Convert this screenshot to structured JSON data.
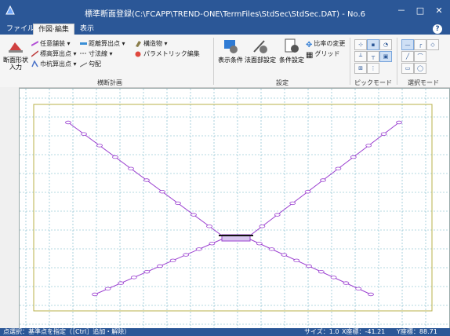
{
  "window": {
    "title": "標準断面登録(C:\\FCAPP\\TREND-ONE\\TermFiles\\StdSec\\StdSec.DAT) - No.6",
    "minimize": "－",
    "maximize": "□",
    "close": "✕"
  },
  "menu": {
    "tabs": [
      "ファイル",
      "作図·編集",
      "表示"
    ],
    "help": "?"
  },
  "ribbon": {
    "cross_section_group": {
      "label": "横断計画",
      "shape_input_button": "断面形状\n入力",
      "pavement": "任意舗装",
      "slope_calc": "標高算出点",
      "width_calc": "巾杭算出点",
      "distance_calc": "距離算出点",
      "dimension": "寸法線",
      "grade": "勾配",
      "structure": "構造物",
      "parametric": "パラメトリック編集"
    },
    "settings_group": {
      "label": "設定",
      "display_conditions": "表示条件",
      "slope_part": "法面部設定",
      "condition_settings": "条件設定",
      "ratio_change": "比率の変更",
      "grid": "グリッド"
    },
    "pick_group": {
      "label": "ピックモード"
    },
    "select_group": {
      "label": "選択モード"
    }
  },
  "status": {
    "left": "点選択：基準点を指定（［Ctrl］追加・解除）",
    "size": "サイズ：1.0",
    "x": "X座標：-41.21",
    "y": "Y座標：88.71"
  },
  "colors": {
    "titlebar": "#2b5797",
    "grid": "#6fb1c6",
    "frame": "#b8b04a",
    "line": "#9b40d0"
  }
}
